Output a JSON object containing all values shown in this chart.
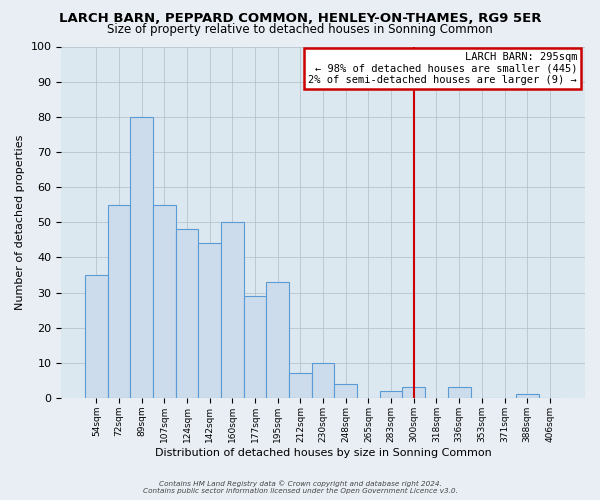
{
  "title": "LARCH BARN, PEPPARD COMMON, HENLEY-ON-THAMES, RG9 5ER",
  "subtitle": "Size of property relative to detached houses in Sonning Common",
  "xlabel": "Distribution of detached houses by size in Sonning Common",
  "ylabel": "Number of detached properties",
  "bar_labels": [
    "54sqm",
    "72sqm",
    "89sqm",
    "107sqm",
    "124sqm",
    "142sqm",
    "160sqm",
    "177sqm",
    "195sqm",
    "212sqm",
    "230sqm",
    "248sqm",
    "265sqm",
    "283sqm",
    "300sqm",
    "318sqm",
    "336sqm",
    "353sqm",
    "371sqm",
    "388sqm",
    "406sqm"
  ],
  "bar_values": [
    35,
    55,
    80,
    55,
    48,
    44,
    50,
    29,
    33,
    7,
    10,
    4,
    0,
    2,
    3,
    0,
    3,
    0,
    0,
    1,
    0
  ],
  "bar_color": "#ccdcec",
  "bar_edge_color": "#5b9bd5",
  "vline_x_index": 14,
  "vline_color": "#cc0000",
  "ylim": [
    0,
    100
  ],
  "annotation_title": "LARCH BARN: 295sqm",
  "annotation_line1": "← 98% of detached houses are smaller (445)",
  "annotation_line2": "2% of semi-detached houses are larger (9) →",
  "annotation_box_color": "#cc0000",
  "footer_line1": "Contains HM Land Registry data © Crown copyright and database right 2024.",
  "footer_line2": "Contains public sector information licensed under the Open Government Licence v3.0.",
  "figure_facecolor": "#e8eef4",
  "plot_facecolor": "#dce8f0",
  "grid_color": "#b0bec8"
}
